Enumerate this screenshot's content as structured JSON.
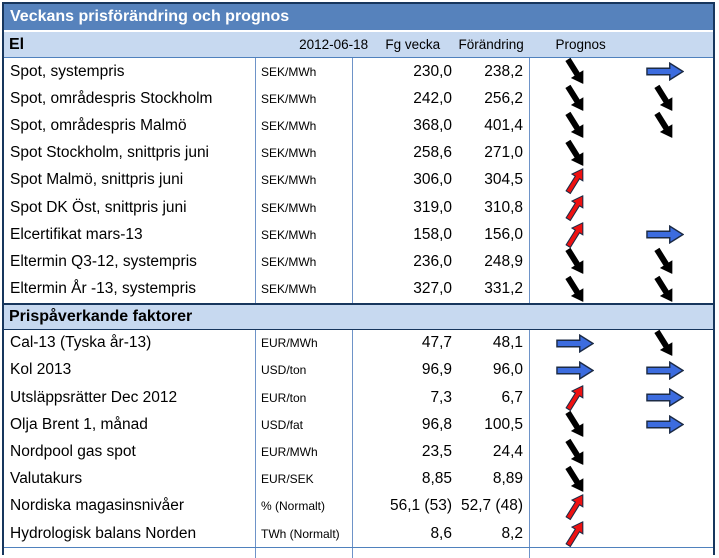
{
  "title": "Veckans prisförändring och prognos",
  "columns": {
    "date": "2012-06-18",
    "prev": "Fg vecka",
    "change": "Förändring",
    "forecast": "Prognos"
  },
  "sections": [
    {
      "header": "El",
      "rows": [
        {
          "name": "Spot, systempris",
          "unit": "SEK/MWh",
          "current": "230,0",
          "previous": "238,2",
          "change": "down",
          "forecast": "right"
        },
        {
          "name": "Spot, områdespris Stockholm",
          "unit": "SEK/MWh",
          "current": "242,0",
          "previous": "256,2",
          "change": "down",
          "forecast": "down"
        },
        {
          "name": "Spot, områdespris Malmö",
          "unit": "SEK/MWh",
          "current": "368,0",
          "previous": "401,4",
          "change": "down",
          "forecast": "down"
        },
        {
          "name": "Spot Stockholm, snittpris juni",
          "unit": "SEK/MWh",
          "current": "258,6",
          "previous": "271,0",
          "change": "down",
          "forecast": "none"
        },
        {
          "name": "Spot Malmö, snittpris juni",
          "unit": "SEK/MWh",
          "current": "306,0",
          "previous": "304,5",
          "change": "up",
          "forecast": "none"
        },
        {
          "name": "Spot DK Öst, snittpris juni",
          "unit": "SEK/MWh",
          "current": "319,0",
          "previous": "310,8",
          "change": "up",
          "forecast": "none"
        },
        {
          "name": "Elcertifikat mars-13",
          "unit": "SEK/MWh",
          "current": "158,0",
          "previous": "156,0",
          "change": "up",
          "forecast": "right"
        },
        {
          "name": "Eltermin Q3-12, systempris",
          "unit": "SEK/MWh",
          "current": "236,0",
          "previous": "248,9",
          "change": "down",
          "forecast": "down"
        },
        {
          "name": "Eltermin År -13, systempris",
          "unit": "SEK/MWh",
          "current": "327,0",
          "previous": "331,2",
          "change": "down",
          "forecast": "down"
        }
      ]
    },
    {
      "header": "Prispåverkande faktorer",
      "rows": [
        {
          "name": "Cal-13 (Tyska år-13)",
          "unit": "EUR/MWh",
          "current": "47,7",
          "previous": "48,1",
          "change": "right",
          "forecast": "down"
        },
        {
          "name": "Kol 2013",
          "unit": "USD/ton",
          "current": "96,9",
          "previous": "96,0",
          "change": "right",
          "forecast": "right"
        },
        {
          "name": "Utsläppsrätter Dec 2012",
          "unit": "EUR/ton",
          "current": "7,3",
          "previous": "6,7",
          "change": "up",
          "forecast": "right"
        },
        {
          "name": "Olja Brent 1, månad",
          "unit": "USD/fat",
          "current": "96,8",
          "previous": "100,5",
          "change": "down",
          "forecast": "right"
        },
        {
          "name": "Nordpool gas spot",
          "unit": "EUR/MWh",
          "current": "23,5",
          "previous": "24,4",
          "change": "down",
          "forecast": "none"
        },
        {
          "name": "Valutakurs",
          "unit": "EUR/SEK",
          "current": "8,85",
          "previous": "8,89",
          "change": "down",
          "forecast": "none"
        },
        {
          "name": "Nordiska magasinsnivåer",
          "unit": "% (Normalt)",
          "current": "56,1 (53)",
          "previous": "52,7 (48)",
          "change": "up",
          "forecast": "none"
        },
        {
          "name": "Hydrologisk balans Norden",
          "unit": "TWh (Normalt)",
          "current": "8,6",
          "previous": "8,2",
          "change": "up",
          "forecast": "none"
        }
      ]
    }
  ],
  "colors": {
    "title_bg": "#5682bc",
    "section_bg": "#c7d9f0",
    "border_dark": "#17365d",
    "border_light": "#6e93c8",
    "arrow_down": "#000000",
    "arrow_up": "#ee1111",
    "arrow_right": "#3c6cdf",
    "arrow_outline": "#1c2b45"
  }
}
